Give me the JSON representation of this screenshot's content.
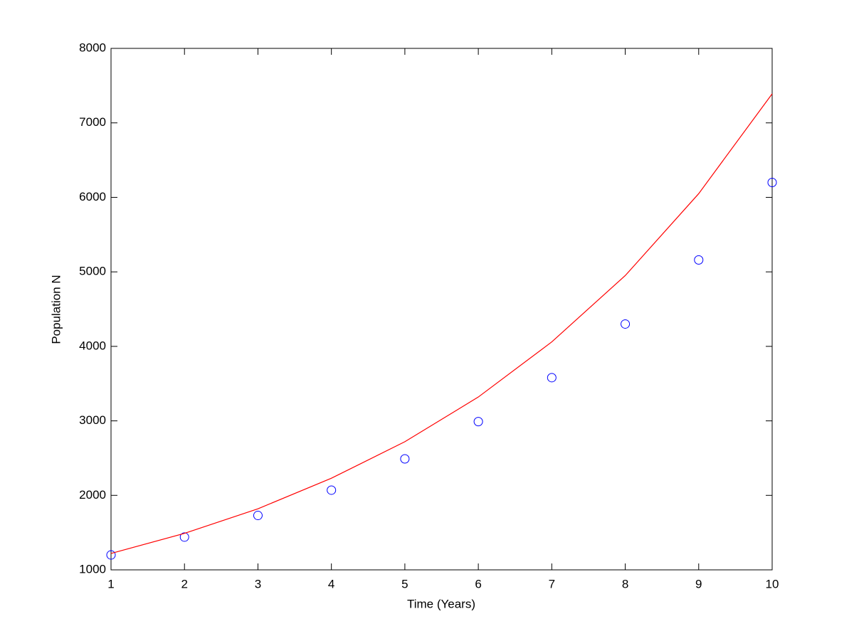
{
  "chart_data": {
    "type": "line",
    "x_label": "Time (Years)",
    "y_label": "Population N",
    "x": [
      1,
      2,
      3,
      4,
      5,
      6,
      7,
      8,
      9,
      10
    ],
    "series": [
      {
        "mode": "markers",
        "color": "#0000ff",
        "values": [
          1200,
          1440,
          1730,
          2070,
          2490,
          2990,
          3580,
          4300,
          5160,
          6200
        ]
      },
      {
        "mode": "lines",
        "color": "#ff0000",
        "values": [
          1220,
          1490,
          1820,
          2230,
          2720,
          3320,
          4060,
          4950,
          6050,
          7390
        ]
      }
    ],
    "xlim": [
      1,
      10
    ],
    "xticks": [
      1,
      2,
      3,
      4,
      5,
      6,
      7,
      8,
      9,
      10
    ],
    "ylim": [
      1000,
      8000
    ],
    "yticks": [
      1000,
      2000,
      3000,
      4000,
      5000,
      6000,
      7000,
      8000
    ],
    "grid": false
  }
}
